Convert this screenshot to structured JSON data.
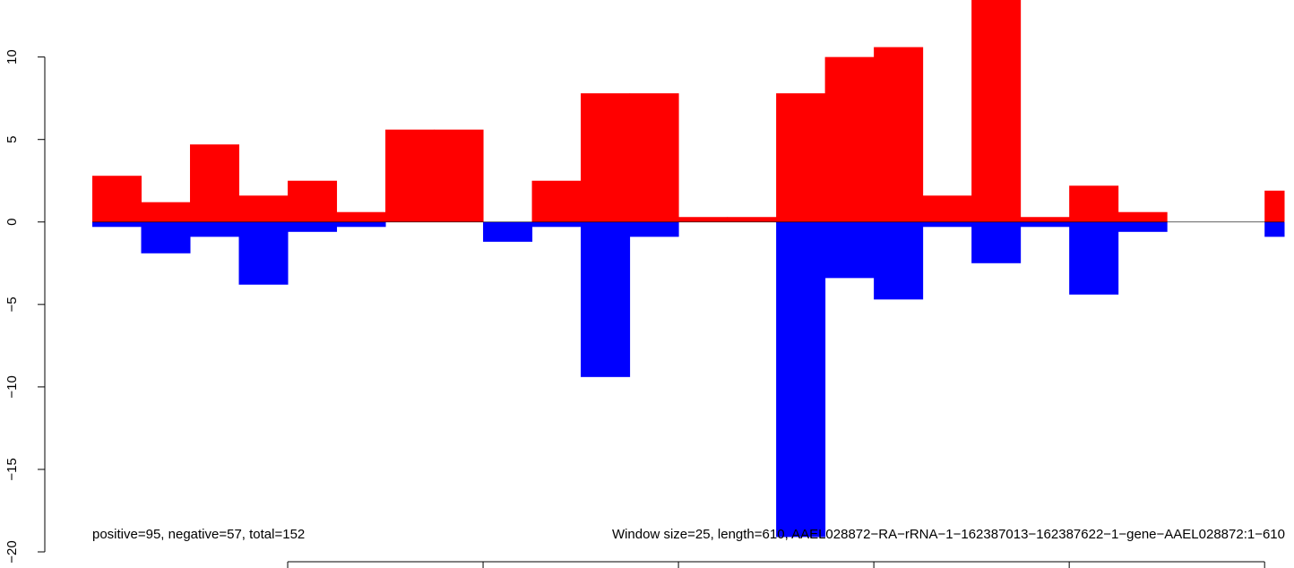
{
  "chart_data": {
    "type": "bar",
    "title": "",
    "xlabel": "",
    "ylabel": "",
    "ylim": [
      -20,
      14
    ],
    "xlim": [
      0,
      610
    ],
    "bin_width": 25,
    "y_ticks": [
      -20,
      -15,
      -10,
      -5,
      0,
      5,
      10
    ],
    "y_tick_labels": [
      "−20",
      "−15",
      "−10",
      "−5",
      "0",
      "5",
      "10"
    ],
    "x_ticks": [
      100,
      200,
      300,
      400,
      500,
      600
    ],
    "grid": false,
    "series": [
      {
        "name": "",
        "color": "#ff0000",
        "values": [
          2.8,
          1.2,
          4.7,
          1.6,
          2.5,
          0.6,
          5.6,
          5.6,
          0,
          2.5,
          7.8,
          7.8,
          0.3,
          0.3,
          7.8,
          10.0,
          10.6,
          1.6,
          13.9,
          0.3,
          2.2,
          0.6,
          0,
          0,
          1.9,
          1.9
        ]
      },
      {
        "name": "",
        "color": "#0000ff",
        "values": [
          -0.3,
          -1.9,
          -0.9,
          -3.8,
          -0.6,
          -0.3,
          0,
          0,
          -1.2,
          -0.3,
          -9.4,
          -0.9,
          0,
          0,
          -19.1,
          -3.4,
          -4.7,
          -0.3,
          -2.5,
          -0.3,
          -4.4,
          -0.6,
          0,
          0,
          -0.9,
          -0.9
        ]
      }
    ],
    "annotations": [
      "positive=95, negative=57, total=152",
      "Window size=25, length=610, AAEL028872−RA−rRNA−1−162387013−162387622−1−gene−AAEL028872:1−610"
    ]
  }
}
